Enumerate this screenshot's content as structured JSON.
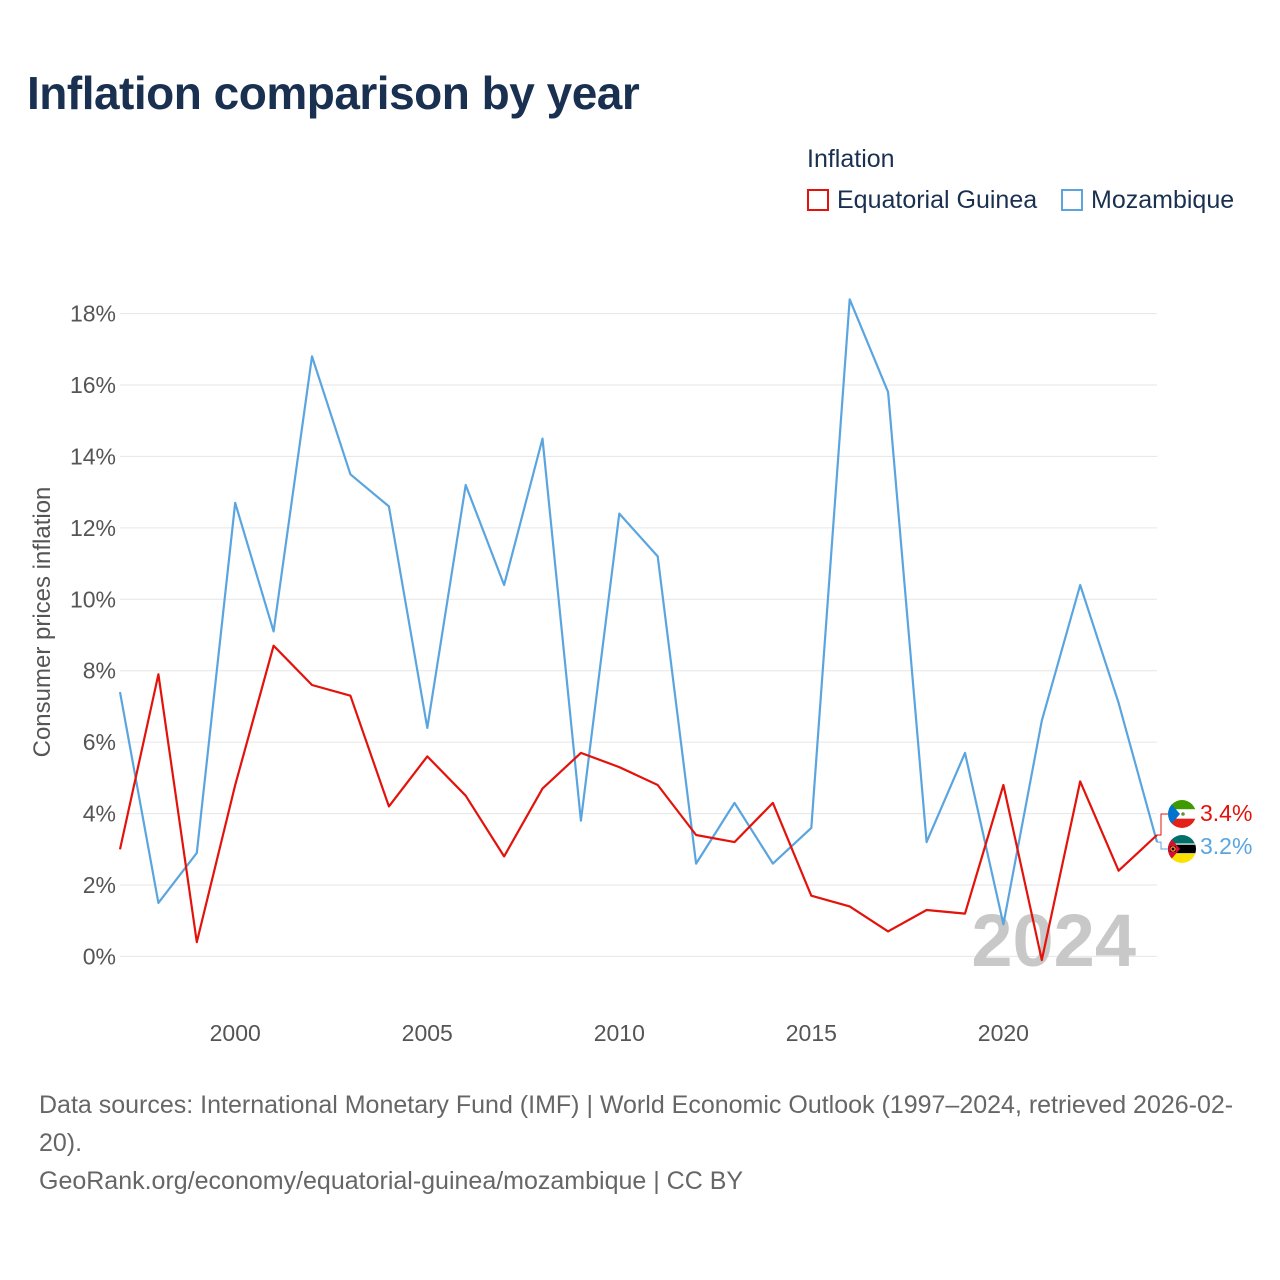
{
  "title": "Inflation comparison by year",
  "legend": {
    "title": "Inflation",
    "items": [
      {
        "label": "Equatorial Guinea",
        "color": "#e3120b"
      },
      {
        "label": "Mozambique",
        "color": "#5aa5e0"
      }
    ]
  },
  "chart_data": {
    "type": "line",
    "title": "Inflation comparison by year",
    "ylabel": "Consumer prices inflation",
    "xlabel": "",
    "ylim": [
      -1.5,
      19.5
    ],
    "xlim": [
      1997,
      2024
    ],
    "y_ticks": [
      0,
      2,
      4,
      6,
      8,
      10,
      12,
      14,
      16,
      18
    ],
    "y_tick_labels": [
      "0%",
      "2%",
      "4%",
      "6%",
      "8%",
      "10%",
      "12%",
      "14%",
      "16%",
      "18%"
    ],
    "x_ticks": [
      2000,
      2005,
      2010,
      2015,
      2020
    ],
    "x_tick_labels": [
      "2000",
      "2005",
      "2010",
      "2015",
      "2020"
    ],
    "grid": true,
    "x": [
      1997,
      1998,
      1999,
      2000,
      2001,
      2002,
      2003,
      2004,
      2005,
      2006,
      2007,
      2008,
      2009,
      2010,
      2011,
      2012,
      2013,
      2014,
      2015,
      2016,
      2017,
      2018,
      2019,
      2020,
      2021,
      2022,
      2023,
      2024
    ],
    "series": [
      {
        "name": "Equatorial Guinea",
        "color": "#e3120b",
        "values": [
          3.0,
          7.9,
          0.4,
          4.8,
          8.7,
          7.6,
          7.3,
          4.2,
          5.6,
          4.5,
          2.8,
          4.7,
          5.7,
          5.3,
          4.8,
          3.4,
          3.2,
          4.3,
          1.7,
          1.4,
          0.7,
          1.3,
          1.2,
          4.8,
          -0.1,
          4.9,
          2.4,
          3.4
        ],
        "end_label": "3.4%"
      },
      {
        "name": "Mozambique",
        "color": "#5aa5e0",
        "values": [
          7.4,
          1.5,
          2.9,
          12.7,
          9.1,
          16.8,
          13.5,
          12.6,
          6.4,
          13.2,
          10.4,
          14.5,
          3.8,
          12.4,
          11.2,
          2.6,
          4.3,
          2.6,
          3.6,
          18.4,
          15.8,
          3.2,
          5.7,
          0.9,
          6.6,
          10.4,
          7.1,
          3.2
        ],
        "end_label": "3.2%"
      }
    ],
    "current_year_label": "2024"
  },
  "footer": {
    "sources": "Data sources: International Monetary Fund (IMF) | World Economic Outlook (1997–2024, retrieved 2026-02-20).",
    "attribution": "GeoRank.org/economy/equatorial-guinea/mozambique | CC BY"
  }
}
